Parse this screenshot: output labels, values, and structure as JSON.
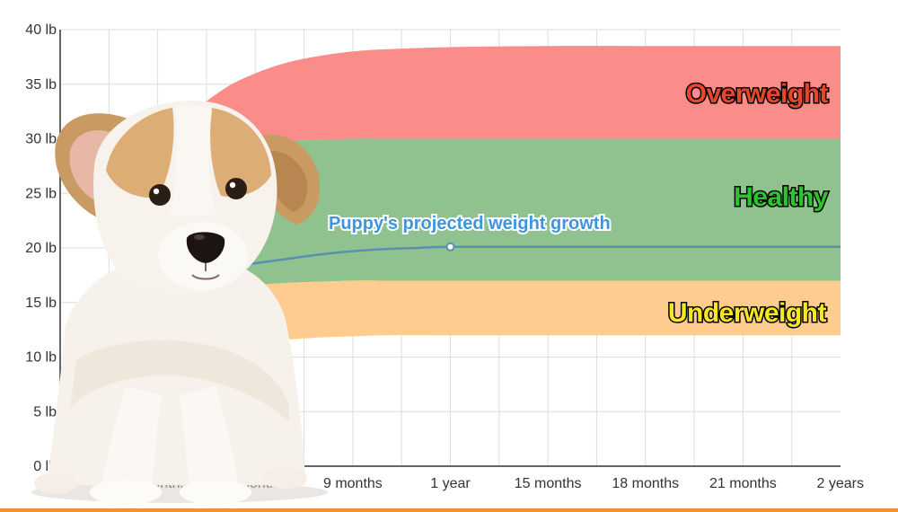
{
  "colors": {
    "overweight": "#fa8c8a",
    "healthy": "#8fc28f",
    "underweight": "#fdcc8e",
    "growth_line": "#5a8fb0",
    "growth_label": "#3f95dc",
    "grid": "#dddddd",
    "bottom_rule": "#e8953a"
  },
  "chart_data": {
    "type": "area",
    "y_unit": "lb",
    "ylim": [
      0,
      40
    ],
    "x_range_months": [
      0,
      24
    ],
    "y_ticks": [
      {
        "value": 0,
        "label": "0 lb"
      },
      {
        "value": 5,
        "label": "5 lb"
      },
      {
        "value": 10,
        "label": "10 lb"
      },
      {
        "value": 15,
        "label": "15 lb"
      },
      {
        "value": 20,
        "label": "20 lb"
      },
      {
        "value": 25,
        "label": "25 lb"
      },
      {
        "value": 30,
        "label": "30 lb"
      },
      {
        "value": 35,
        "label": "35 lb"
      },
      {
        "value": 40,
        "label": "40 lb"
      }
    ],
    "x_ticks": [
      {
        "value": 3,
        "label": "3 months"
      },
      {
        "value": 6,
        "label": "6 months"
      },
      {
        "value": 9,
        "label": "9 months"
      },
      {
        "value": 12,
        "label": "1 year"
      },
      {
        "value": 15,
        "label": "15 months"
      },
      {
        "value": 18,
        "label": "18 months"
      },
      {
        "value": 21,
        "label": "21 months"
      },
      {
        "value": 24,
        "label": "2 years"
      }
    ],
    "x": [
      2,
      3,
      4,
      5,
      6,
      7,
      8,
      9,
      10,
      12,
      15,
      18,
      21,
      24
    ],
    "bands": [
      {
        "name": "Overweight",
        "color_key": "overweight",
        "lower": [
          17.5,
          23.0,
          26.5,
          28.5,
          29.5,
          29.8,
          29.9,
          30.0,
          30.0,
          30.0,
          30.0,
          30.0,
          30.0,
          30.0
        ],
        "upper": [
          20.0,
          27.5,
          32.0,
          34.5,
          36.0,
          37.0,
          37.6,
          38.0,
          38.2,
          38.4,
          38.5,
          38.5,
          38.5,
          38.5
        ]
      },
      {
        "name": "Healthy",
        "color_key": "healthy",
        "lower": [
          13.5,
          15.0,
          15.8,
          16.3,
          16.6,
          16.8,
          16.9,
          17.0,
          17.0,
          17.0,
          17.0,
          17.0,
          17.0,
          17.0
        ],
        "upper": [
          17.5,
          23.0,
          26.5,
          28.5,
          29.5,
          29.8,
          29.9,
          30.0,
          30.0,
          30.0,
          30.0,
          30.0,
          30.0,
          30.0
        ]
      },
      {
        "name": "Underweight",
        "color_key": "underweight",
        "lower": [
          7.0,
          9.0,
          10.0,
          10.8,
          11.3,
          11.6,
          11.8,
          11.9,
          12.0,
          12.0,
          12.0,
          12.0,
          12.0,
          12.0
        ],
        "upper": [
          13.5,
          15.0,
          15.8,
          16.3,
          16.6,
          16.8,
          16.9,
          17.0,
          17.0,
          17.0,
          17.0,
          17.0,
          17.0,
          17.0
        ]
      }
    ],
    "series": [
      {
        "name": "Puppy's projected weight growth",
        "x": [
          4,
          5,
          6,
          7,
          8,
          9,
          10,
          11,
          12,
          15,
          18,
          21,
          24
        ],
        "values": [
          17.8,
          18.2,
          18.6,
          19.0,
          19.4,
          19.7,
          19.9,
          20.0,
          20.1,
          20.1,
          20.1,
          20.1,
          20.1
        ],
        "marker_at": 12
      }
    ],
    "zone_labels": {
      "overweight": "Overweight",
      "healthy": "Healthy",
      "underweight": "Underweight",
      "growth": "Puppy's projected weight growth"
    },
    "grid": true,
    "legend": "none"
  }
}
